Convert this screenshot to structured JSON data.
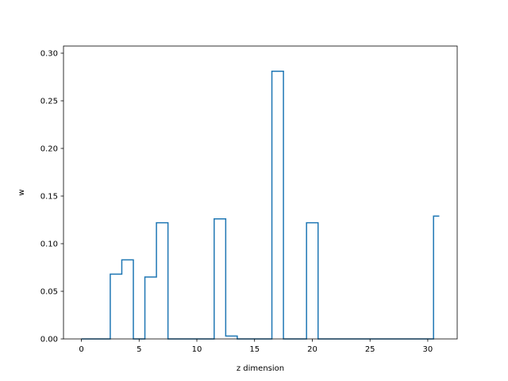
{
  "chart_data": {
    "type": "line",
    "drawstyle": "steps-mid",
    "xlabel": "z dimension",
    "ylabel": "w",
    "xlim": [
      -1.55,
      32.55
    ],
    "ylim": [
      0.0,
      0.3
    ],
    "xticks": [
      0,
      5,
      10,
      15,
      20,
      25,
      30
    ],
    "xtick_labels": [
      "0",
      "5",
      "10",
      "15",
      "20",
      "25",
      "30"
    ],
    "yticks": [
      0.0,
      0.05,
      0.1,
      0.15,
      0.2,
      0.25,
      0.3
    ],
    "ytick_labels": [
      "0.00",
      "0.05",
      "0.10",
      "0.15",
      "0.20",
      "0.25",
      "0.30"
    ],
    "grid": false,
    "line_color": "#1f77b4",
    "x": [
      0,
      1,
      2,
      3,
      4,
      5,
      6,
      7,
      8,
      9,
      10,
      11,
      12,
      13,
      14,
      15,
      16,
      17,
      18,
      19,
      20,
      21,
      22,
      23,
      24,
      25,
      26,
      27,
      28,
      29,
      30,
      31
    ],
    "y": [
      0,
      0,
      0,
      0.068,
      0.083,
      0,
      0.065,
      0.122,
      0,
      0,
      0,
      0,
      0.126,
      0.003,
      0,
      0,
      0,
      0.281,
      0,
      0,
      0.122,
      0,
      0,
      0,
      0,
      0,
      0,
      0,
      0,
      0,
      0,
      0.129
    ]
  }
}
